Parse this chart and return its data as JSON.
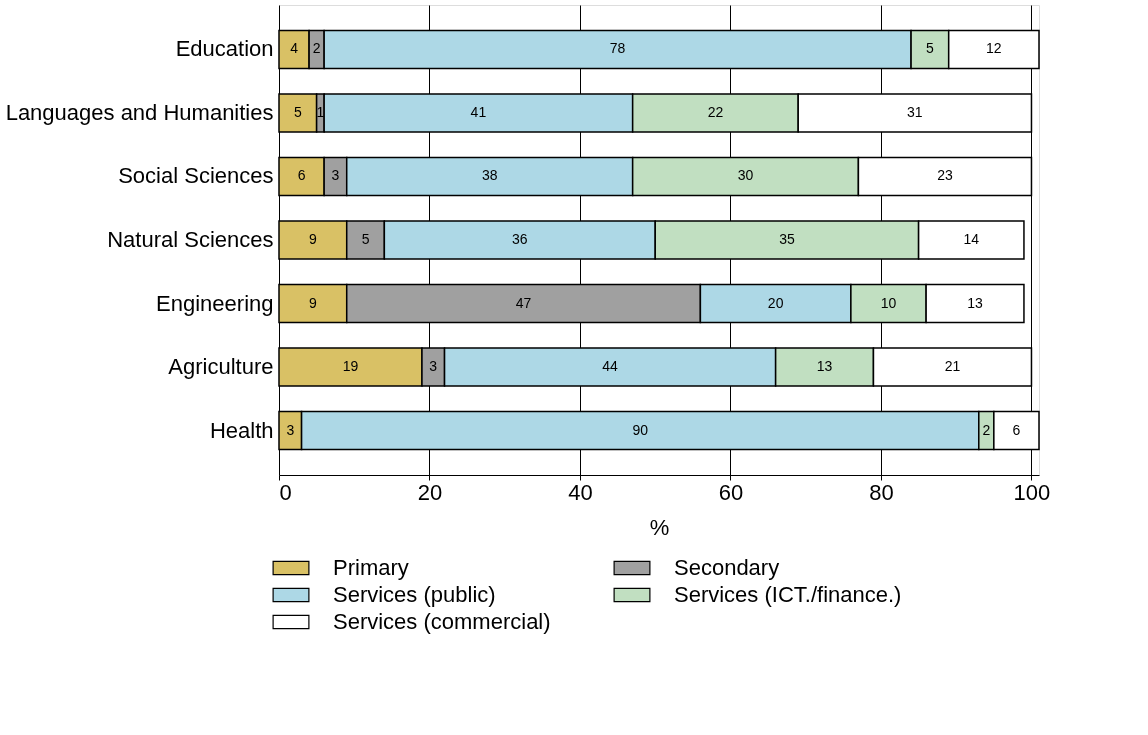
{
  "chart_data": {
    "type": "bar",
    "orientation": "horizontal",
    "stacked": true,
    "xlabel": "%",
    "categories": [
      "Education",
      "Languages and Humanities",
      "Social Sciences",
      "Natural Sciences",
      "Engineering",
      "Agriculture",
      "Health"
    ],
    "series": [
      {
        "name": "Primary",
        "color": "#d9c165",
        "values": [
          4,
          5,
          6,
          9,
          9,
          19,
          3
        ]
      },
      {
        "name": "Secondary",
        "color": "#a0a0a0",
        "values": [
          2,
          1,
          3,
          5,
          47,
          3,
          null
        ]
      },
      {
        "name": "Services (public)",
        "color": "#add8e6",
        "values": [
          78,
          41,
          38,
          36,
          20,
          44,
          90
        ]
      },
      {
        "name": "Services (ICT./finance.)",
        "color": "#c1dfc1",
        "values": [
          5,
          22,
          30,
          35,
          10,
          13,
          2
        ]
      },
      {
        "name": "Services (commercial)",
        "color": "#ffffff",
        "values": [
          12,
          31,
          23,
          14,
          13,
          21,
          6
        ]
      }
    ],
    "xlim": [
      0,
      101
    ],
    "xticks": [
      0,
      20,
      40,
      60,
      80,
      100
    ],
    "data_labels": true,
    "grid": "x",
    "legend": "bottom"
  }
}
